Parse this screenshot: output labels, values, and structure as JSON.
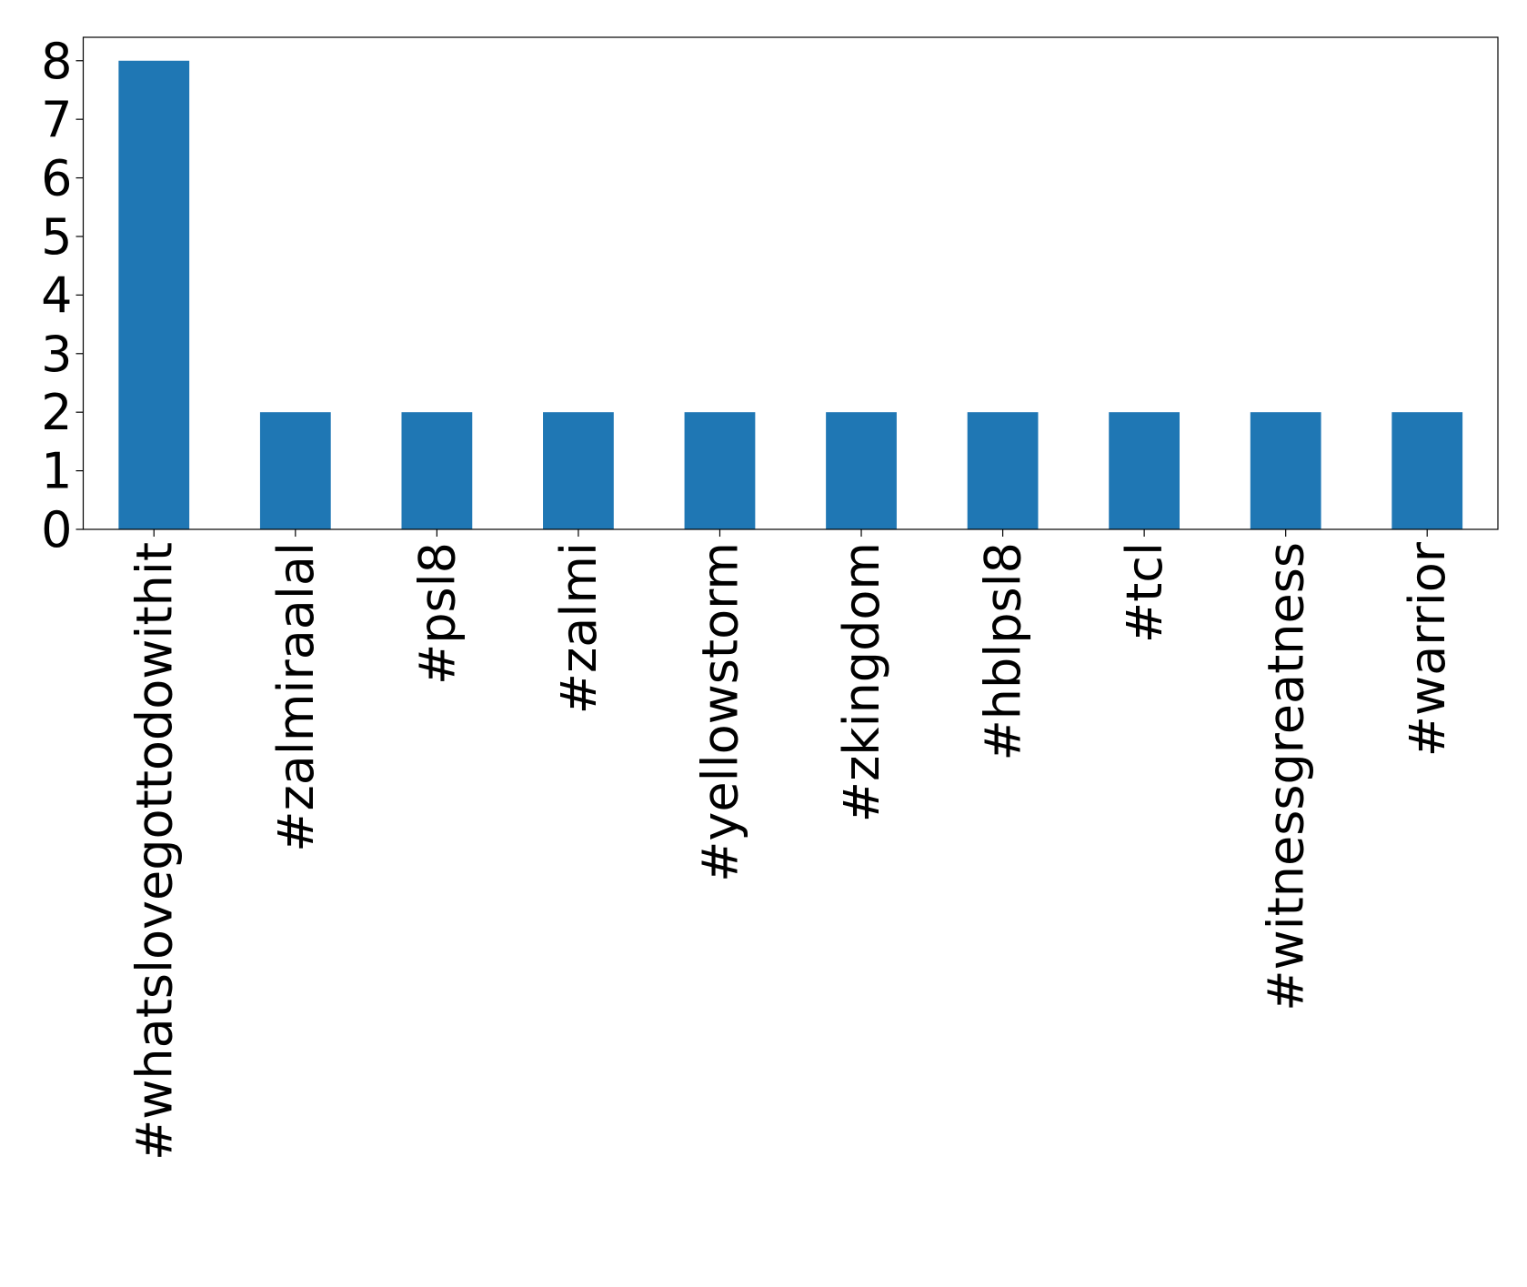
{
  "chart_data": {
    "type": "bar",
    "categories": [
      "#whatslovegottodowithit",
      "#zalmiraalal",
      "#psl8",
      "#zalmi",
      "#yellowstorm",
      "#zkingdom",
      "#hblpsl8",
      "#tcl",
      "#witnessgreatness",
      "#warrior"
    ],
    "values": [
      8,
      2,
      2,
      2,
      2,
      2,
      2,
      2,
      2,
      2
    ],
    "color": "#1f77b4",
    "ylim": [
      0,
      8.4
    ],
    "yticks": [
      0,
      1,
      2,
      3,
      4,
      5,
      6,
      7,
      8
    ],
    "grid": false
  }
}
